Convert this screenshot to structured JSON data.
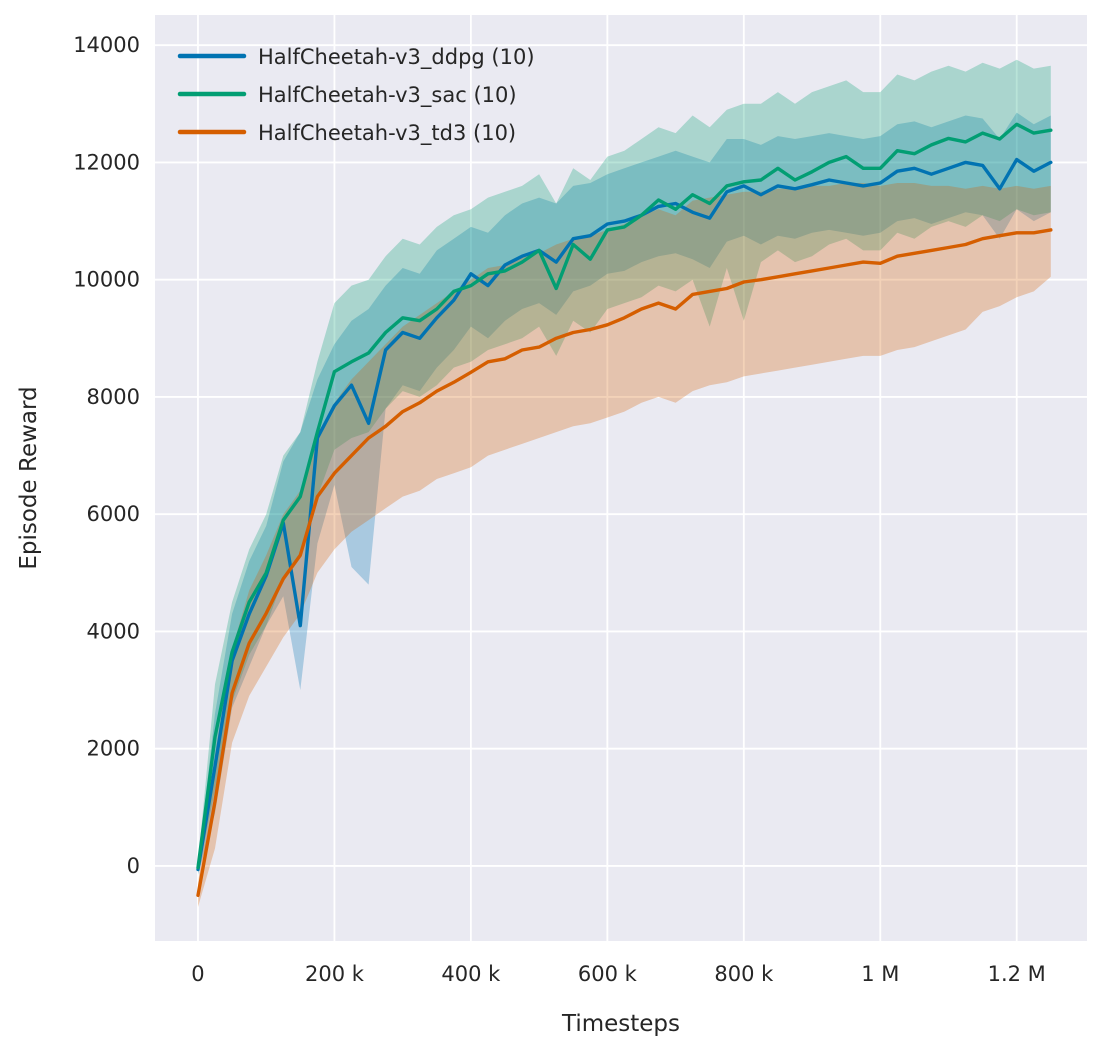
{
  "chart_data": {
    "type": "line",
    "title": "",
    "xlabel": "Timesteps",
    "ylabel": "Episode Reward",
    "xlim": [
      -63000,
      1303000
    ],
    "ylim": [
      -1280,
      14515
    ],
    "grid": true,
    "legend_position": "upper-left",
    "plot_background": "#eaeaf2",
    "gridline_color": "#ffffff",
    "band_alpha": 0.28,
    "x_ticks": [
      {
        "value": 0,
        "label": "0"
      },
      {
        "value": 200000,
        "label": "200 k"
      },
      {
        "value": 400000,
        "label": "400 k"
      },
      {
        "value": 600000,
        "label": "600 k"
      },
      {
        "value": 800000,
        "label": "800 k"
      },
      {
        "value": 1000000,
        "label": "1 M"
      },
      {
        "value": 1200000,
        "label": "1.2 M"
      }
    ],
    "y_ticks": [
      {
        "value": 0,
        "label": "0"
      },
      {
        "value": 2000,
        "label": "2000"
      },
      {
        "value": 4000,
        "label": "4000"
      },
      {
        "value": 6000,
        "label": "6000"
      },
      {
        "value": 8000,
        "label": "8000"
      },
      {
        "value": 10000,
        "label": "10000"
      },
      {
        "value": 12000,
        "label": "12000"
      },
      {
        "value": 14000,
        "label": "14000"
      }
    ],
    "x": [
      0,
      25000,
      50000,
      75000,
      100000,
      125000,
      150000,
      175000,
      200000,
      225000,
      250000,
      275000,
      300000,
      325000,
      350000,
      375000,
      400000,
      425000,
      450000,
      475000,
      500000,
      525000,
      550000,
      575000,
      600000,
      625000,
      650000,
      675000,
      700000,
      725000,
      750000,
      775000,
      800000,
      825000,
      850000,
      875000,
      900000,
      925000,
      950000,
      975000,
      1000000,
      1025000,
      1050000,
      1075000,
      1100000,
      1125000,
      1150000,
      1175000,
      1200000,
      1225000,
      1250000
    ],
    "series": [
      {
        "key": "ddpg",
        "name": "HalfCheetah-v3_ddpg (10)",
        "color": "#0173b2",
        "mean": [
          -60,
          1700,
          3500,
          4300,
          4950,
          5850,
          4100,
          7300,
          7850,
          8200,
          7550,
          8800,
          9100,
          9000,
          9350,
          9650,
          10100,
          9900,
          10250,
          10400,
          10500,
          10300,
          10700,
          10750,
          10950,
          11000,
          11100,
          11250,
          11300,
          11150,
          11050,
          11500,
          11600,
          11450,
          11600,
          11550,
          11620,
          11700,
          11650,
          11600,
          11650,
          11850,
          11900,
          11800,
          11900,
          12000,
          11950,
          11550,
          12050,
          11850,
          12000
        ],
        "lo": [
          -150,
          900,
          2700,
          3400,
          4100,
          4600,
          3000,
          5500,
          6500,
          5100,
          4800,
          7800,
          8200,
          8100,
          8500,
          8800,
          9200,
          9000,
          9300,
          9500,
          9600,
          9400,
          9800,
          9900,
          10100,
          10150,
          10300,
          10400,
          10450,
          10350,
          10200,
          10650,
          10750,
          10600,
          10750,
          10700,
          10800,
          10850,
          10800,
          10750,
          10800,
          11000,
          11050,
          10950,
          11050,
          11150,
          11100,
          10700,
          11200,
          11000,
          11150
        ],
        "hi": [
          30,
          2600,
          4300,
          5200,
          5800,
          6900,
          7400,
          8300,
          8900,
          9300,
          9500,
          9900,
          10200,
          10100,
          10500,
          10700,
          10900,
          10800,
          11100,
          11300,
          11400,
          11300,
          11600,
          11650,
          11800,
          11900,
          12000,
          12100,
          12200,
          12100,
          12000,
          12400,
          12400,
          12300,
          12450,
          12400,
          12450,
          12500,
          12450,
          12400,
          12450,
          12650,
          12700,
          12600,
          12700,
          12800,
          12750,
          12400,
          12850,
          12650,
          12800
        ]
      },
      {
        "key": "sac",
        "name": "HalfCheetah-v3_sac (10)",
        "color": "#029e73",
        "mean": [
          -30,
          2200,
          3650,
          4500,
          5000,
          5900,
          6300,
          7400,
          8430,
          8600,
          8750,
          9100,
          9350,
          9300,
          9500,
          9800,
          9900,
          10100,
          10150,
          10300,
          10500,
          9850,
          10600,
          10350,
          10850,
          10900,
          11100,
          11360,
          11200,
          11450,
          11300,
          11600,
          11670,
          11700,
          11900,
          11700,
          11840,
          12000,
          12100,
          11900,
          11900,
          12200,
          12150,
          12300,
          12410,
          12350,
          12500,
          12400,
          12650,
          12500,
          12550
        ],
        "lo": [
          -120,
          1300,
          2800,
          3600,
          4100,
          4900,
          5300,
          6300,
          7100,
          7300,
          7400,
          7800,
          8100,
          8000,
          8200,
          8500,
          8600,
          8800,
          8900,
          9000,
          9200,
          8700,
          9300,
          9100,
          9500,
          9600,
          9700,
          9900,
          9800,
          10000,
          9200,
          10200,
          9300,
          10300,
          10500,
          10300,
          10400,
          10600,
          10700,
          10500,
          10500,
          10800,
          10700,
          10900,
          11000,
          10900,
          11100,
          11000,
          11200,
          11100,
          11150
        ],
        "hi": [
          60,
          3100,
          4500,
          5400,
          6000,
          7000,
          7400,
          8600,
          9600,
          9900,
          10000,
          10400,
          10700,
          10600,
          10900,
          11100,
          11200,
          11400,
          11500,
          11600,
          11800,
          11300,
          11900,
          11700,
          12100,
          12200,
          12400,
          12600,
          12500,
          12800,
          12600,
          12900,
          13000,
          13000,
          13200,
          13000,
          13200,
          13300,
          13400,
          13200,
          13200,
          13500,
          13400,
          13550,
          13650,
          13550,
          13700,
          13600,
          13750,
          13600,
          13650
        ]
      },
      {
        "key": "td3",
        "name": "HalfCheetah-v3_td3 (10)",
        "color": "#d55e00",
        "mean": [
          -500,
          1100,
          2950,
          3800,
          4310,
          4900,
          5300,
          6300,
          6700,
          7000,
          7300,
          7500,
          7750,
          7900,
          8100,
          8250,
          8420,
          8600,
          8650,
          8800,
          8850,
          9000,
          9100,
          9150,
          9230,
          9350,
          9500,
          9600,
          9500,
          9750,
          9800,
          9850,
          9960,
          10000,
          10050,
          10100,
          10150,
          10200,
          10250,
          10300,
          10280,
          10400,
          10450,
          10500,
          10550,
          10600,
          10700,
          10750,
          10800,
          10800,
          10850
        ],
        "lo": [
          -700,
          300,
          2100,
          2900,
          3400,
          3900,
          4300,
          5000,
          5400,
          5700,
          5900,
          6100,
          6300,
          6400,
          6600,
          6700,
          6800,
          7000,
          7100,
          7200,
          7300,
          7400,
          7500,
          7550,
          7650,
          7750,
          7900,
          8000,
          7900,
          8100,
          8200,
          8250,
          8350,
          8400,
          8450,
          8500,
          8550,
          8600,
          8650,
          8700,
          8700,
          8800,
          8850,
          8950,
          9050,
          9150,
          9450,
          9550,
          9700,
          9800,
          10050
        ],
        "hi": [
          -300,
          1900,
          3700,
          4700,
          5300,
          6000,
          6400,
          7300,
          7900,
          8300,
          8600,
          8900,
          9200,
          9400,
          9600,
          9800,
          10000,
          10200,
          10250,
          10400,
          10450,
          10600,
          10700,
          10750,
          10850,
          10950,
          11100,
          11200,
          11100,
          11350,
          11400,
          11450,
          11500,
          11500,
          11550,
          11550,
          11600,
          11600,
          11650,
          11650,
          11600,
          11650,
          11650,
          11600,
          11600,
          11550,
          11600,
          11550,
          11600,
          11550,
          11600
        ]
      }
    ]
  }
}
